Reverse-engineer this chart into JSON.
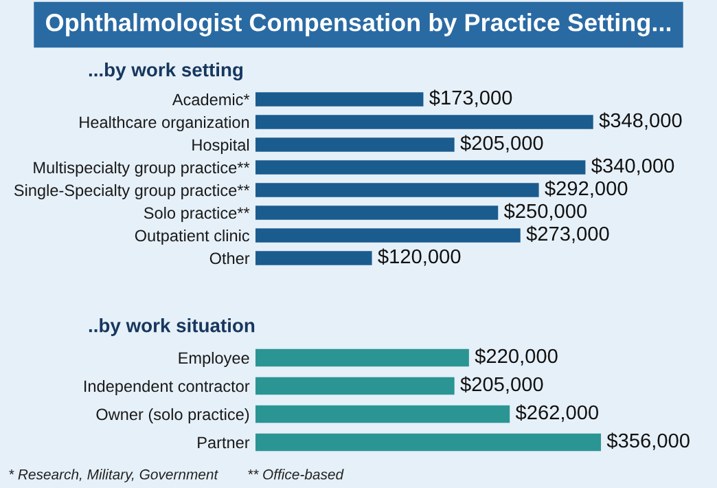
{
  "chart_data": [
    {
      "type": "bar",
      "orientation": "horizontal",
      "title": "Ophthalmologist Compensation by Practice Setting...",
      "subtitle": "...by work setting",
      "categories": [
        "Academic*",
        "Healthcare organization",
        "Hospital",
        "Multispecialty group practice**",
        "Single-Specialty group practice**",
        "Solo practice**",
        "Outpatient clinic",
        "Other"
      ],
      "values": [
        173000,
        348000,
        205000,
        340000,
        292000,
        250000,
        273000,
        120000
      ],
      "value_labels": [
        "$173,000",
        "$348,000",
        "$205,000",
        "$340,000",
        "$292,000",
        "$250,000",
        "$273,000",
        "$120,000"
      ],
      "color": "#1b5c8f",
      "grid": false,
      "legend": false
    },
    {
      "type": "bar",
      "orientation": "horizontal",
      "subtitle": "..by work situation",
      "categories": [
        "Employee",
        "Independent contractor",
        "Owner (solo practice)",
        "Partner"
      ],
      "values": [
        220000,
        205000,
        262000,
        356000
      ],
      "value_labels": [
        "$220,000",
        "$205,000",
        "$262,000",
        "$356,000"
      ],
      "color": "#2b9594",
      "grid": false,
      "legend": false,
      "annotations": [
        "* Research, Military, Government",
        "** Office-based"
      ]
    }
  ]
}
